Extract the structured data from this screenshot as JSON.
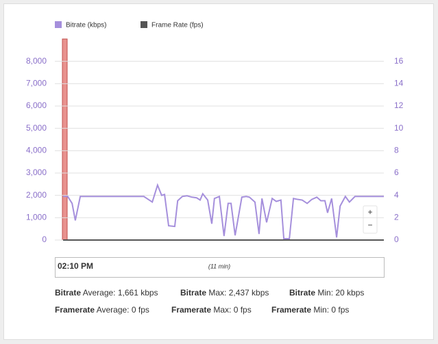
{
  "chart_data": {
    "type": "line",
    "xlim": [
      0,
      11
    ],
    "ylim": [
      0,
      9000
    ],
    "y2lim": [
      0,
      18
    ],
    "grid": true,
    "yticks": [
      0,
      {
        "value": 1000,
        "label": "1,000"
      },
      {
        "value": 2000,
        "label": "2,000"
      },
      {
        "value": 3000,
        "label": "3,000"
      },
      {
        "value": 4000,
        "label": "4,000"
      },
      {
        "value": 5000,
        "label": "5,000"
      },
      {
        "value": 6000,
        "label": "6,000"
      },
      {
        "value": 7000,
        "label": "7,000"
      },
      {
        "value": 8000,
        "label": "8,000"
      }
    ],
    "y2ticks": [
      0,
      2,
      4,
      6,
      8,
      10,
      12,
      14,
      16
    ],
    "series": [
      {
        "name": "Bitrate (kbps)",
        "color": "#a58fdc",
        "x": [
          0,
          0.16,
          0.31,
          0.42,
          0.59,
          2.77,
          3.06,
          3.24,
          3.38,
          3.48,
          3.62,
          3.83,
          3.93,
          4.09,
          4.25,
          4.42,
          4.58,
          4.7,
          4.79,
          4.96,
          5.1,
          5.19,
          5.36,
          5.52,
          5.66,
          5.76,
          5.9,
          6.13,
          6.28,
          6.39,
          6.58,
          6.72,
          6.82,
          6.98,
          7.17,
          7.31,
          7.47,
          7.57,
          7.76,
          7.9,
          8.04,
          8.2,
          8.37,
          8.53,
          8.7,
          8.84,
          8.98,
          9.07,
          9.21,
          9.38,
          9.5,
          9.68,
          9.82,
          10.01,
          11
        ],
        "values": [
          1950,
          1950,
          1640,
          880,
          1950,
          1950,
          1700,
          2460,
          2000,
          2040,
          640,
          610,
          1760,
          1950,
          1980,
          1920,
          1890,
          1790,
          2070,
          1790,
          730,
          1860,
          1950,
          180,
          1640,
          1640,
          210,
          1920,
          1950,
          1920,
          1700,
          270,
          1860,
          790,
          1860,
          1730,
          1790,
          60,
          60,
          1860,
          1820,
          1790,
          1640,
          1820,
          1920,
          1760,
          1760,
          1220,
          1860,
          120,
          1520,
          1950,
          1700,
          1950,
          1950
        ]
      },
      {
        "name": "Frame Rate (fps)",
        "color": "#555555",
        "axis": "y2",
        "x": [
          0,
          11
        ],
        "values": [
          0,
          0
        ]
      }
    ]
  },
  "navigator": {
    "start": "02:10 PM",
    "span": "(11 min)"
  },
  "zoom": {
    "in": "+",
    "out": "−"
  },
  "stats": [
    [
      {
        "name": "Bitrate",
        "text": "Average: 1,661 kbps"
      },
      {
        "name": "Bitrate",
        "text": "Max: 2,437 kbps"
      },
      {
        "name": "Bitrate",
        "text": "Min: 20 kbps"
      }
    ],
    [
      {
        "name": "Framerate",
        "text": "Average: 0 fps"
      },
      {
        "name": "Framerate",
        "text": "Max: 0 fps"
      },
      {
        "name": "Framerate",
        "text": "Min: 0 fps"
      }
    ]
  ]
}
